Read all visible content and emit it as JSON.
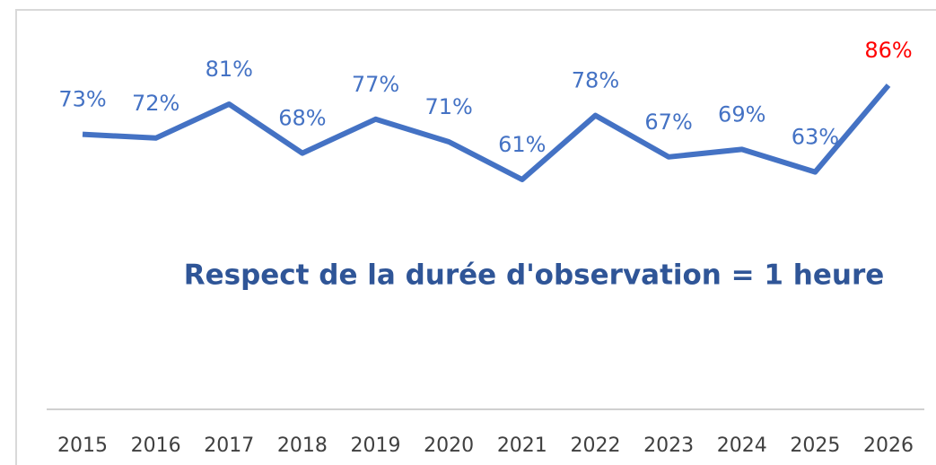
{
  "chart_data": {
    "type": "line",
    "annotation": "Respect de la durée d'observation = 1 heure",
    "categories": [
      "2015",
      "2016",
      "2017",
      "2018",
      "2019",
      "2020",
      "2021",
      "2022",
      "2023",
      "2024",
      "2025",
      "2026"
    ],
    "series": [
      {
        "color": "#4472c4",
        "values": [
          73,
          72,
          81,
          68,
          77,
          71,
          61,
          78,
          67,
          69,
          63,
          86
        ],
        "value_labels": [
          "73%",
          "72%",
          "81%",
          "68%",
          "77%",
          "71%",
          "61%",
          "78%",
          "67%",
          "69%",
          "63%",
          "86%"
        ],
        "label_colors": [
          "#4472c4",
          "#4472c4",
          "#4472c4",
          "#4472c4",
          "#4472c4",
          "#4472c4",
          "#4472c4",
          "#4472c4",
          "#4472c4",
          "#4472c4",
          "#4472c4",
          "#ff0000"
        ]
      }
    ]
  }
}
